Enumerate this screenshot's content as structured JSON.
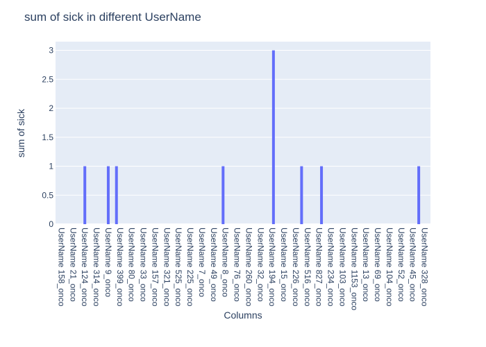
{
  "chart_data": {
    "type": "bar",
    "title": "sum of sick in different UserName",
    "xlabel": "Columns",
    "ylabel": "sum of sick",
    "ylim": [
      0,
      3.15
    ],
    "yticks": [
      "0",
      "0.5",
      "1",
      "1.5",
      "2",
      "2.5",
      "3"
    ],
    "grid": true,
    "bar_color": "#636efa",
    "plot_background": "#e5ecf6",
    "x_tick_labels": [
      "UserName 158_onco",
      "UserName 21_onco",
      "UserName 124_onco",
      "UserName 314_onco",
      "UserName 9_onco",
      "UserName 399_onco",
      "UserName 80_onco",
      "UserName 33_onco",
      "UserName 157_onco",
      "UserName 321_onco",
      "UserName 525_onco",
      "UserName 225_onco",
      "UserName 7_onco",
      "UserName 49_onco",
      "UserName 8_onco",
      "UserName 76_onco",
      "UserName 260_onco",
      "UserName 32_onco",
      "UserName 194_onco",
      "UserName 15_onco",
      "UserName 226_onco",
      "UserName 516_onco",
      "UserName 827_onco",
      "UserName 234_onco",
      "UserName 103_onco",
      "UserName 1153_onco",
      "UserName 13_onco",
      "UserName 69_onco",
      "UserName 104_onco",
      "UserName 52_onco",
      "UserName 45_onco",
      "UserName 328_onco"
    ],
    "bars": [
      {
        "x_index": 2,
        "value": 1
      },
      {
        "x_index": 4,
        "value": 1
      },
      {
        "x_index": 4.7,
        "value": 1
      },
      {
        "x_index": 13.8,
        "value": 1
      },
      {
        "x_index": 18.1,
        "value": 3
      },
      {
        "x_index": 20.5,
        "value": 1
      },
      {
        "x_index": 22.2,
        "value": 1
      },
      {
        "x_index": 30.5,
        "value": 1
      }
    ]
  }
}
